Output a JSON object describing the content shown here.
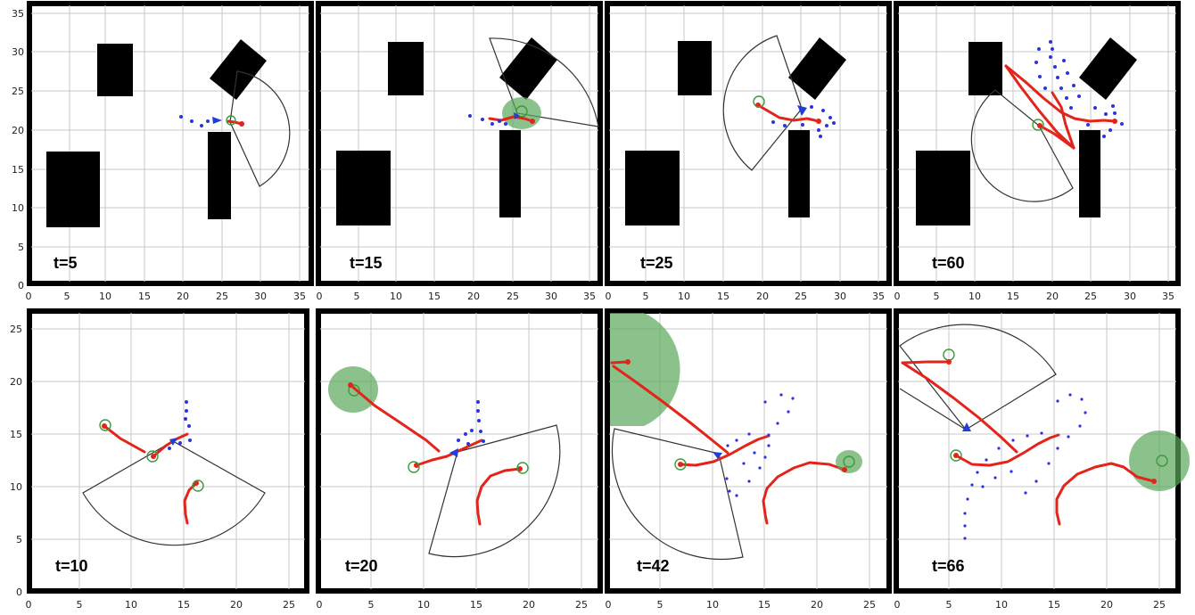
{
  "top_row": {
    "ticks": [
      "0",
      "5",
      "10",
      "15",
      "20",
      "25",
      "30",
      "35"
    ],
    "panels": [
      {
        "time_label": "t=5"
      },
      {
        "time_label": "t=15"
      },
      {
        "time_label": "t=25"
      },
      {
        "time_label": "t=60"
      }
    ]
  },
  "bottom_row": {
    "ticks": [
      "0",
      "5",
      "10",
      "15",
      "20",
      "25"
    ],
    "panels": [
      {
        "time_label": "t=10"
      },
      {
        "time_label": "t=20"
      },
      {
        "time_label": "t=42"
      },
      {
        "time_label": "t=66"
      }
    ]
  },
  "colors": {
    "trajectory": "#e3241b",
    "predicted_points": "#2b33e0",
    "goal_region": "#5aa85a",
    "obstacle": "#000000"
  }
}
